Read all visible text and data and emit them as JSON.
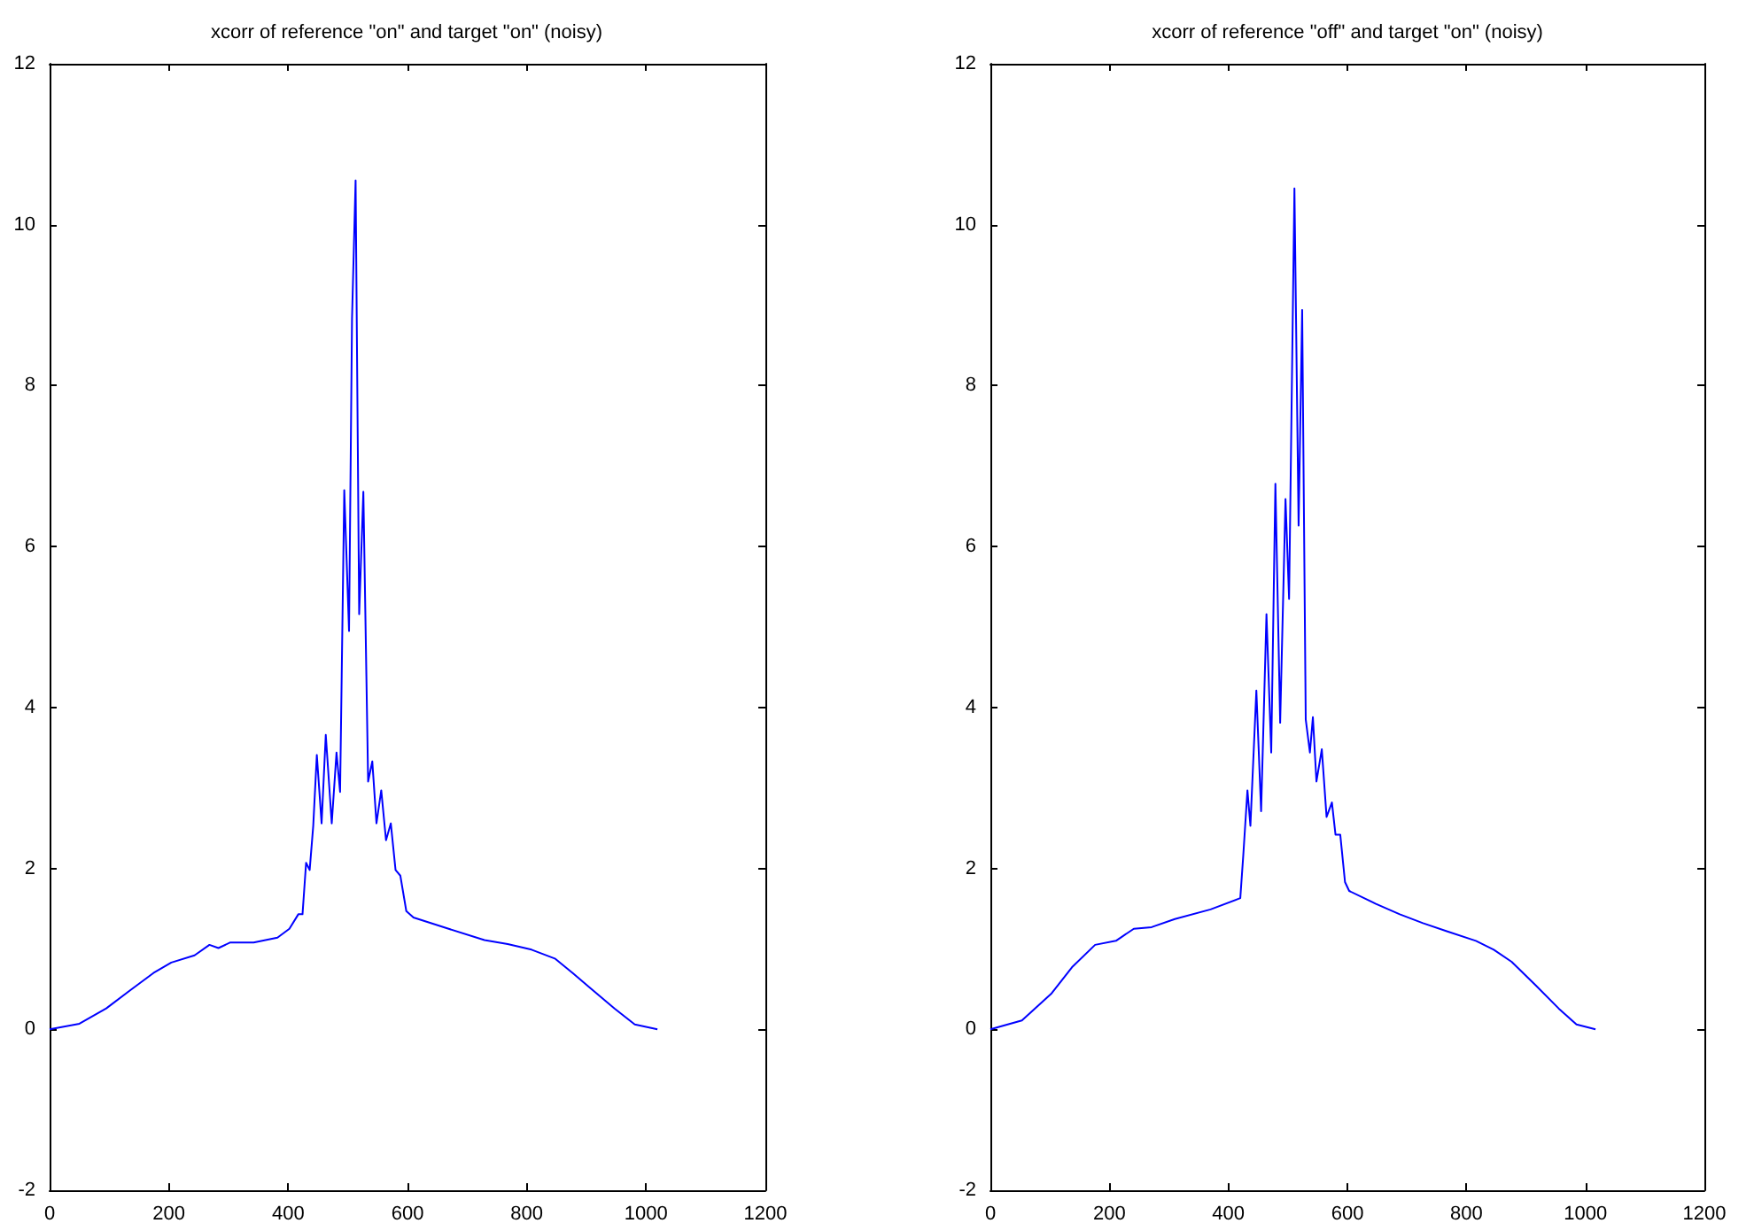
{
  "chart_data": [
    {
      "type": "line",
      "title": "xcorr of reference \"on\" and target \"on\" (noisy)",
      "xlim": [
        0,
        1200
      ],
      "xticks": [
        0,
        200,
        400,
        600,
        800,
        1000,
        1200
      ],
      "ylim": [
        -2,
        12
      ],
      "yticks": [
        -2,
        0,
        2,
        4,
        6,
        8,
        10,
        12
      ],
      "grid": false,
      "marker": "none",
      "line_style": "solid",
      "series": [
        {
          "color": "#0000ff",
          "x": [
            0,
            50,
            95,
            134,
            174,
            204,
            243,
            268,
            283,
            303,
            342,
            382,
            402,
            417,
            424,
            430,
            436,
            442,
            448,
            456,
            463,
            473,
            481,
            487,
            494,
            502,
            507,
            513,
            519,
            526,
            534,
            541,
            548,
            556,
            564,
            572,
            580,
            588,
            598,
            610,
            669,
            729,
            768,
            808,
            847,
            877,
            907,
            947,
            981,
            1019
          ],
          "values": [
            0,
            0.07,
            0.26,
            0.48,
            0.7,
            0.83,
            0.92,
            1.05,
            1.01,
            1.08,
            1.08,
            1.14,
            1.25,
            1.43,
            1.43,
            2.07,
            1.98,
            2.53,
            3.41,
            2.56,
            3.66,
            2.56,
            3.44,
            2.95,
            6.7,
            4.95,
            8.83,
            10.55,
            5.16,
            6.68,
            3.08,
            3.33,
            2.56,
            2.97,
            2.35,
            2.56,
            1.98,
            1.91,
            1.47,
            1.39,
            1.25,
            1.11,
            1.06,
            0.99,
            0.88,
            0.7,
            0.51,
            0.26,
            0.06,
            0
          ]
        }
      ]
    },
    {
      "type": "line",
      "title": "xcorr of reference \"off\" and target \"on\" (noisy)",
      "xlim": [
        0,
        1200
      ],
      "xticks": [
        0,
        200,
        400,
        600,
        800,
        1000,
        1200
      ],
      "ylim": [
        -2,
        12
      ],
      "yticks": [
        -2,
        0,
        2,
        4,
        6,
        8,
        10,
        12
      ],
      "grid": false,
      "marker": "none",
      "line_style": "solid",
      "series": [
        {
          "color": "#0000ff",
          "x": [
            0,
            53,
            102,
            137,
            176,
            211,
            241,
            271,
            310,
            370,
            420,
            425,
            432,
            437,
            447,
            455,
            464,
            472,
            479,
            487,
            496,
            502,
            511,
            518,
            524,
            530,
            537,
            542,
            548,
            557,
            565,
            574,
            580,
            588,
            596,
            603,
            648,
            688,
            727,
            767,
            816,
            846,
            876,
            916,
            955,
            985,
            1017
          ],
          "values": [
            0,
            0.11,
            0.44,
            0.77,
            1.05,
            1.1,
            1.25,
            1.27,
            1.37,
            1.49,
            1.63,
            2.16,
            2.97,
            2.53,
            4.21,
            2.71,
            5.16,
            3.44,
            6.78,
            3.81,
            6.59,
            5.35,
            10.45,
            6.26,
            8.94,
            3.85,
            3.44,
            3.88,
            3.08,
            3.48,
            2.64,
            2.82,
            2.42,
            2.42,
            1.83,
            1.72,
            1.56,
            1.43,
            1.32,
            1.22,
            1.1,
            0.99,
            0.84,
            0.55,
            0.26,
            0.06,
            0
          ]
        }
      ]
    }
  ]
}
